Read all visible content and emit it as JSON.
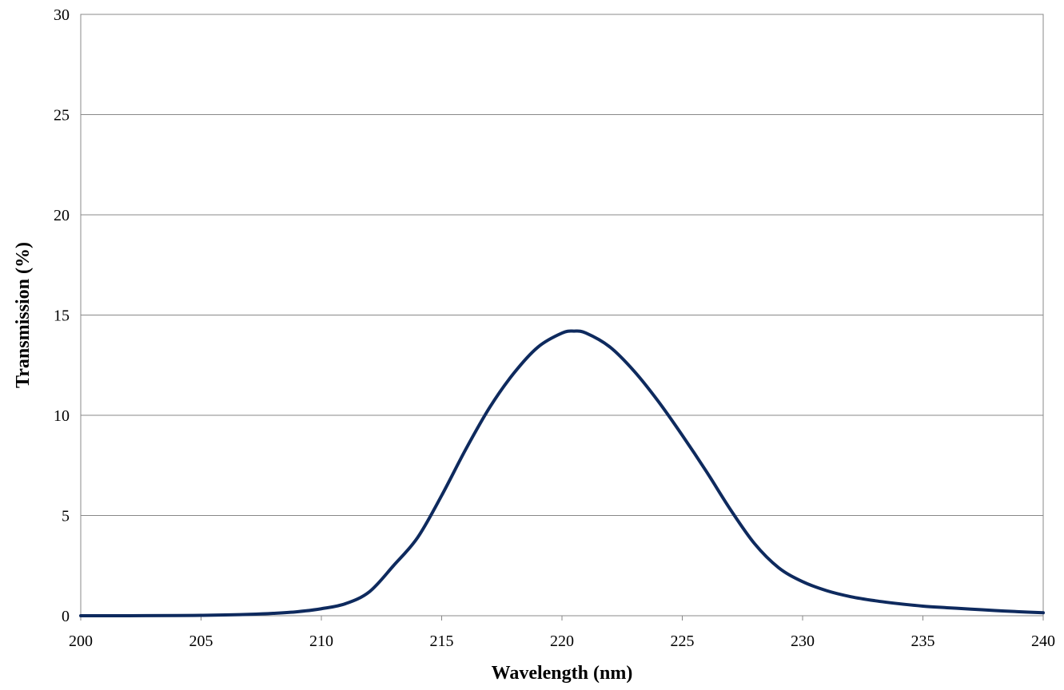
{
  "chart_data": {
    "type": "line",
    "xlabel": "Wavelength (nm)",
    "ylabel": "Transmission (%)",
    "xlim": [
      200,
      240
    ],
    "ylim": [
      0,
      30
    ],
    "x_ticks": [
      "200",
      "205",
      "210",
      "215",
      "220",
      "225",
      "230",
      "235",
      "240"
    ],
    "y_ticks": [
      "0",
      "5",
      "10",
      "15",
      "20",
      "25",
      "30"
    ],
    "grid": "horizontal",
    "legend": "none",
    "series": [
      {
        "color": "#0e2a5e",
        "x": [
          200,
          202,
          204,
          205,
          206,
          207,
          208,
          209,
          210,
          211,
          212,
          213,
          214,
          215,
          216,
          217,
          218,
          219,
          220,
          220.5,
          221,
          222,
          223,
          224,
          225,
          226,
          227,
          228,
          229,
          230,
          231,
          232,
          233,
          234,
          235,
          236,
          237,
          238,
          239,
          240
        ],
        "y": [
          0,
          0,
          0.01,
          0.02,
          0.04,
          0.07,
          0.12,
          0.2,
          0.35,
          0.6,
          1.2,
          2.5,
          3.9,
          6.0,
          8.3,
          10.4,
          12.1,
          13.4,
          14.1,
          14.2,
          14.1,
          13.4,
          12.2,
          10.7,
          9.0,
          7.2,
          5.3,
          3.6,
          2.4,
          1.7,
          1.25,
          0.95,
          0.75,
          0.6,
          0.48,
          0.4,
          0.33,
          0.26,
          0.2,
          0.15
        ]
      }
    ]
  }
}
